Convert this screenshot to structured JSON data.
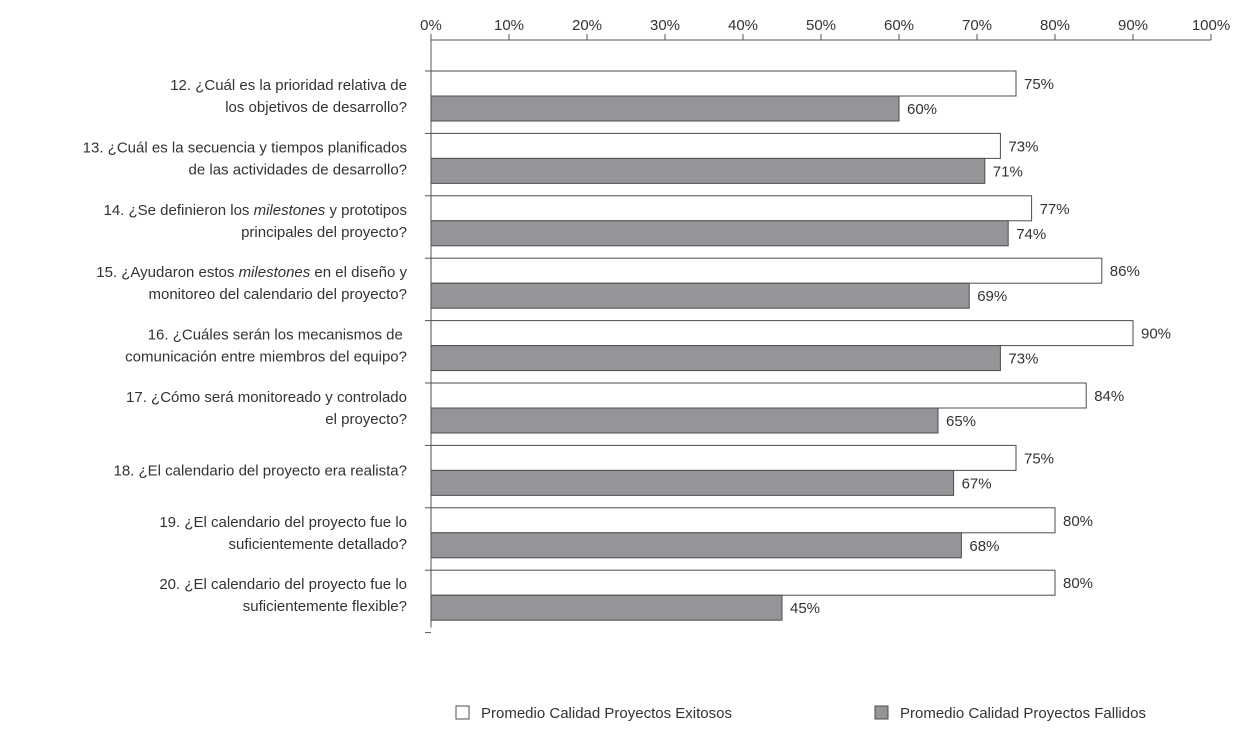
{
  "chart_data": {
    "type": "bar",
    "orientation": "horizontal",
    "x_ticks": [
      "0%",
      "10%",
      "20%",
      "30%",
      "40%",
      "50%",
      "60%",
      "70%",
      "80%",
      "90%",
      "100%"
    ],
    "xlim": [
      0,
      100
    ],
    "tick_position": "top",
    "legend_position": "bottom",
    "categories": [
      {
        "lines": [
          [
            {
              "t": "12. ¿Cuál es la prioridad relativa de"
            }
          ],
          [
            {
              "t": "los objetivos de desarrollo?"
            }
          ]
        ]
      },
      {
        "lines": [
          [
            {
              "t": "13. ¿Cuál es la secuencia y tiempos planificados"
            }
          ],
          [
            {
              "t": "de las actividades de desarrollo?"
            }
          ]
        ]
      },
      {
        "lines": [
          [
            {
              "t": "14. ¿Se definieron los "
            },
            {
              "t": "milestones",
              "i": true
            },
            {
              "t": " y prototipos"
            }
          ],
          [
            {
              "t": "principales del proyecto?"
            }
          ]
        ]
      },
      {
        "lines": [
          [
            {
              "t": "15. ¿Ayudaron estos "
            },
            {
              "t": "milestones",
              "i": true
            },
            {
              "t": " en el diseño y"
            }
          ],
          [
            {
              "t": "monitoreo del calendario del proyecto?"
            }
          ]
        ]
      },
      {
        "lines": [
          [
            {
              "t": "16. ¿Cuáles serán los mecanismos de "
            }
          ],
          [
            {
              "t": "comunicación entre miembros del equipo?"
            }
          ]
        ]
      },
      {
        "lines": [
          [
            {
              "t": "17. ¿Cómo será monitoreado y controlado"
            }
          ],
          [
            {
              "t": "el proyecto?"
            }
          ]
        ]
      },
      {
        "lines": [
          [
            {
              "t": "18. ¿El calendario del proyecto era realista?"
            }
          ]
        ]
      },
      {
        "lines": [
          [
            {
              "t": "19. ¿El calendario del proyecto fue lo"
            }
          ],
          [
            {
              "t": "suficientemente detallado?"
            }
          ]
        ]
      },
      {
        "lines": [
          [
            {
              "t": "20. ¿El calendario del proyecto fue lo"
            }
          ],
          [
            {
              "t": "suficientemente flexible?"
            }
          ]
        ]
      }
    ],
    "series": [
      {
        "name": "Promedio Calidad Proyectos Exitosos",
        "color": "#ffffff",
        "values": [
          75,
          73,
          77,
          86,
          90,
          84,
          75,
          80,
          80
        ],
        "labels": [
          "75%",
          "73%",
          "77%",
          "86%",
          "90%",
          "84%",
          "75%",
          "80%",
          "80%"
        ]
      },
      {
        "name": "Promedio Calidad Proyectos Fallidos",
        "color": "#939598",
        "values": [
          60,
          71,
          74,
          69,
          73,
          65,
          67,
          68,
          45
        ],
        "labels": [
          "60%",
          "71%",
          "74%",
          "69%",
          "73%",
          "65%",
          "67%",
          "68%",
          "45%"
        ]
      }
    ]
  }
}
